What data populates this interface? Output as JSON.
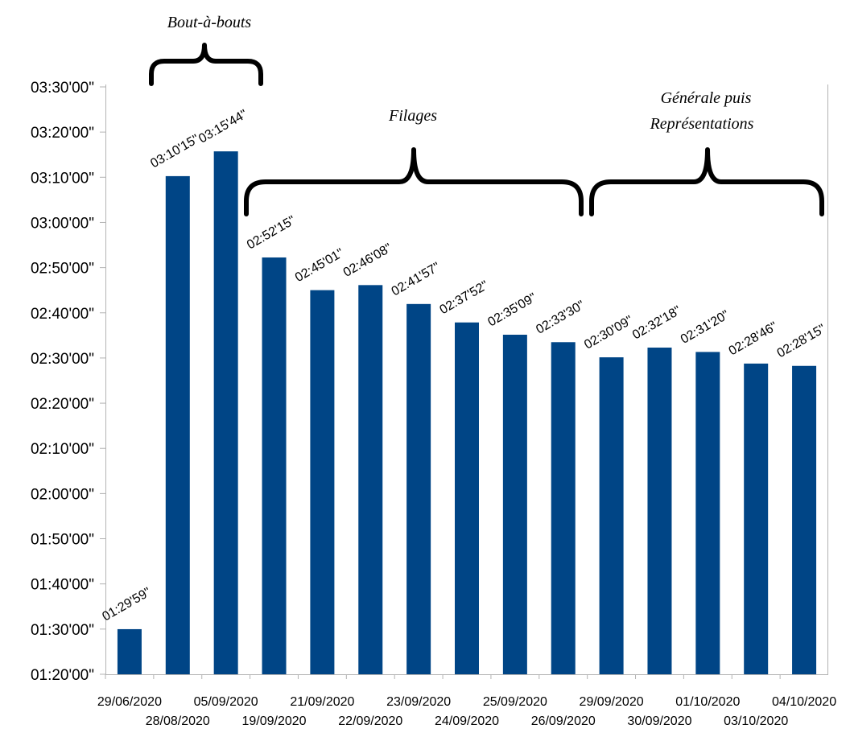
{
  "chart_data": {
    "type": "bar",
    "bar_color": "#004586",
    "categories": [
      "29/06/2020",
      "28/08/2020",
      "05/09/2020",
      "19/09/2020",
      "21/09/2020",
      "22/09/2020",
      "23/09/2020",
      "24/09/2020",
      "25/09/2020",
      "26/09/2020",
      "29/09/2020",
      "30/09/2020",
      "01/10/2020",
      "03/10/2020",
      "04/10/2020"
    ],
    "values_seconds": [
      5399,
      11415,
      11744,
      10335,
      9901,
      9968,
      9717,
      9472,
      9309,
      9210,
      9009,
      9138,
      9080,
      8926,
      8895
    ],
    "data_labels": [
      "01:29'59\"",
      "03:10'15\"",
      "03:15'44\"",
      "02:52'15\"",
      "02:45'01\"",
      "02:46'08\"",
      "02:41'57\"",
      "02:37'52\"",
      "02:35'09\"",
      "02:33'30\"",
      "02:30'09\"",
      "02:32'18\"",
      "02:31'20\"",
      "02:28'46\"",
      "02:28'15\""
    ],
    "ylim_seconds": [
      4800,
      12600
    ],
    "ytick_seconds": [
      4800,
      5400,
      6000,
      6600,
      7200,
      7800,
      8400,
      9000,
      9600,
      10200,
      10800,
      11400,
      12000,
      12600
    ],
    "ytick_labels": [
      "01:20'00\"",
      "01:30'00\"",
      "01:40'00\"",
      "01:50'00\"",
      "02:00'00\"",
      "02:10'00\"",
      "02:20'00\"",
      "02:30'00\"",
      "02:40'00\"",
      "02:50'00\"",
      "03:00'00\"",
      "03:10'00\"",
      "03:20'00\"",
      "03:30'00\""
    ],
    "grid": false,
    "annotations": [
      {
        "text": "Bout-à-bouts",
        "from_index": 1,
        "to_index": 2
      },
      {
        "text": "Filages",
        "from_index": 3,
        "to_index": 9
      },
      {
        "lines": [
          "Générale puis",
          "Représentations"
        ],
        "from_index": 10,
        "to_index": 14
      }
    ]
  }
}
